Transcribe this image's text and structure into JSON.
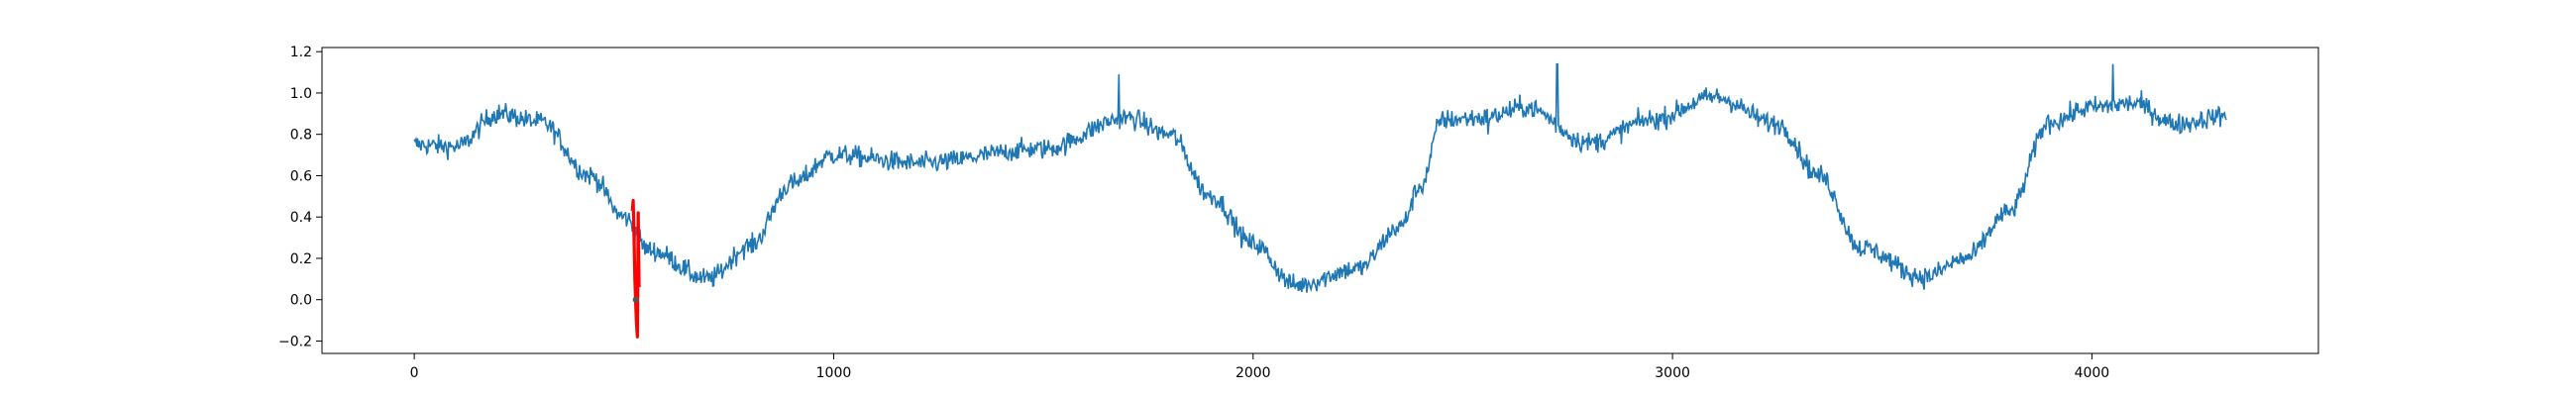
{
  "chart_data": {
    "type": "line",
    "title": "",
    "xlabel": "",
    "ylabel": "",
    "xlim": [
      -220,
      4540
    ],
    "ylim": [
      -0.26,
      1.22
    ],
    "xticks": [
      0,
      1000,
      2000,
      3000,
      4000
    ],
    "xtick_labels": [
      "0",
      "1000",
      "2000",
      "3000",
      "4000"
    ],
    "yticks": [
      -0.2,
      0.0,
      0.2,
      0.4,
      0.6,
      0.8,
      1.0,
      1.2
    ],
    "ytick_labels": [
      "−0.2",
      "0.0",
      "0.2",
      "0.4",
      "0.6",
      "0.8",
      "1.0",
      "1.2"
    ],
    "grid": false,
    "series": [
      {
        "color": "#1f77b4",
        "x_start": 0,
        "x_end": 4320,
        "noise_amplitude": 0.045,
        "anchors": [
          [
            0,
            0.75
          ],
          [
            100,
            0.74
          ],
          [
            200,
            0.9
          ],
          [
            300,
            0.86
          ],
          [
            420,
            0.6
          ],
          [
            500,
            0.4
          ],
          [
            560,
            0.24
          ],
          [
            700,
            0.1
          ],
          [
            800,
            0.26
          ],
          [
            900,
            0.56
          ],
          [
            1000,
            0.7
          ],
          [
            1200,
            0.66
          ],
          [
            1500,
            0.73
          ],
          [
            1700,
            0.88
          ],
          [
            1800,
            0.8
          ],
          [
            1900,
            0.5
          ],
          [
            2000,
            0.27
          ],
          [
            2100,
            0.07
          ],
          [
            2250,
            0.15
          ],
          [
            2350,
            0.35
          ],
          [
            2400,
            0.55
          ],
          [
            2450,
            0.87
          ],
          [
            2550,
            0.88
          ],
          [
            2650,
            0.93
          ],
          [
            2800,
            0.76
          ],
          [
            2950,
            0.87
          ],
          [
            3100,
            0.98
          ],
          [
            3250,
            0.85
          ],
          [
            3350,
            0.6
          ],
          [
            3450,
            0.25
          ],
          [
            3600,
            0.11
          ],
          [
            3700,
            0.2
          ],
          [
            3800,
            0.42
          ],
          [
            3900,
            0.86
          ],
          [
            4000,
            0.93
          ],
          [
            4100,
            0.95
          ],
          [
            4200,
            0.85
          ],
          [
            4320,
            0.89
          ]
        ],
        "spikes": [
          [
            1680,
            1.09
          ],
          [
            2725,
            1.14
          ],
          [
            4050,
            1.14
          ],
          [
            2560,
            0.8
          ]
        ]
      },
      {
        "color": "#ff0000",
        "x": [
          520,
          522,
          524,
          526,
          528,
          530,
          532,
          534,
          536
        ],
        "y": [
          0.43,
          0.48,
          0.3,
          0.1,
          -0.02,
          -0.12,
          -0.18,
          0.42,
          0.06
        ]
      }
    ],
    "markers": [
      {
        "x": 528,
        "y": 0.0,
        "color": "#555555"
      }
    ]
  }
}
